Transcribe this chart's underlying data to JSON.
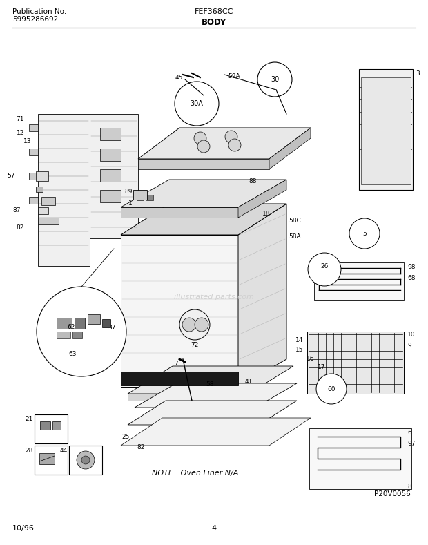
{
  "pub_no_label": "Publication No.",
  "pub_no_value": "5995286692",
  "model_label": "FEF368CC",
  "section_label": "BODY",
  "date_label": "10/96",
  "page_label": "4",
  "bg_color": "#ffffff",
  "text_color": "#000000",
  "note_text": "NOTE:  Oven Liner N/A",
  "p_code": "P20V0056",
  "fig_width": 6.2,
  "fig_height": 7.89,
  "dpi": 100,
  "watermark": "illustrated parts.com"
}
